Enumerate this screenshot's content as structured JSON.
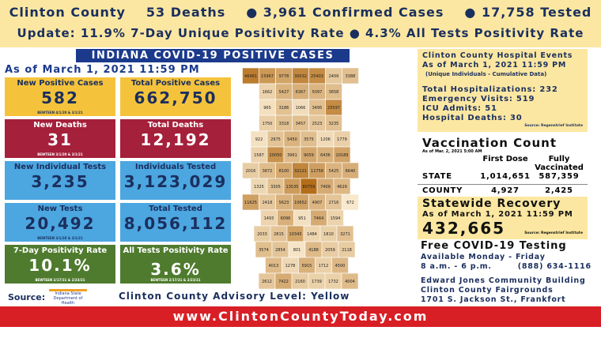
{
  "header": {
    "line1": [
      "Clinton County",
      "53 Deaths",
      "● 3,961 Confirmed Cases",
      "● 17,758 Tested"
    ],
    "line2": "Update: 11.9% 7-Day Unique Positivity Rate ● 4.3% All Tests Positivity Rate"
  },
  "section_title": "INDIANA COVID-19 POSITIVE CASES",
  "as_of": "As of March 1, 2021 11:59 PM",
  "box_rows": [
    {
      "color": "#f5c33b",
      "text_color": "#1b2f5e",
      "boxes": [
        {
          "label": "New Positive Cases",
          "value": "582",
          "note": "BEWTEEN 4/1/20 & 3/1/21"
        },
        {
          "label": "Total Positive Cases",
          "value": "662,750"
        }
      ]
    },
    {
      "color": "#a5203b",
      "text_color": "#ffffff",
      "boxes": [
        {
          "label": "New Deaths",
          "value": "31",
          "note": "BEWTEEN 3/1/20 & 3/1/21"
        },
        {
          "label": "Total Deaths",
          "value": "12,192"
        }
      ]
    },
    {
      "color": "#4ca6e0",
      "text_color": "#1b2f5e",
      "boxes": [
        {
          "label": "New Individual Tests",
          "value": "3,235"
        },
        {
          "label": "Individuals Tested",
          "value": "3,123,029"
        }
      ]
    },
    {
      "color": "#4ca6e0",
      "text_color": "#1b2f5e",
      "boxes": [
        {
          "label": "New Tests",
          "value": "20,492",
          "note": "BEWTEEN 3/1/20 & 3/1/21"
        },
        {
          "label": "Total Tested",
          "value": "8,056,112"
        }
      ]
    },
    {
      "color": "#4f7b2e",
      "text_color": "#ffffff",
      "boxes": [
        {
          "label": "7-Day Positivity Rate",
          "value": "10.1%",
          "note": "BEWTEEN 2/17/21 & 2/23/21"
        },
        {
          "label": "All Tests Positivity Rate",
          "value": "3.6%",
          "note": "BEWTEEN 2/17/21 & 2/23/21"
        }
      ]
    }
  ],
  "source_label": "Source:",
  "source_org": "Indiana State Department of Health",
  "advisory": "Clinton County Advisory Level: Yellow",
  "website": "www.ClintonCountyToday.com",
  "map": {
    "rows": [
      [
        46461,
        15967,
        9778,
        30032,
        25403,
        2409,
        3388
      ],
      [
        1662,
        5427,
        6367,
        5097,
        3658
      ],
      [
        965,
        3186,
        1066,
        3495,
        25597
      ],
      [
        1750,
        3318,
        3457,
        2523,
        3235
      ],
      [
        922,
        2975,
        5450,
        3575,
        1206,
        1779
      ],
      [
        1587,
        20050,
        3961,
        9059,
        6436,
        10189
      ],
      [
        2016,
        3872,
        8100,
        32121,
        11758,
        5425,
        6640
      ],
      [
        1325,
        3305,
        13535,
        80759,
        7409,
        4629
      ],
      [
        11625,
        2418,
        5623,
        10652,
        4907,
        2716,
        672
      ],
      [
        1493,
        6096,
        951,
        7464,
        1594
      ],
      [
        2033,
        2815,
        10343,
        1484,
        1810,
        3271
      ],
      [
        3574,
        2854,
        801,
        4188,
        2059,
        2118
      ],
      [
        4013,
        1278,
        5915,
        1712,
        4500
      ],
      [
        2612,
        7422,
        2160,
        1739,
        1732,
        4004
      ]
    ]
  },
  "hospital": {
    "title": "Clinton County Hospital Events",
    "as_of": "As of March 1, 2021 11:59 PM",
    "subtitle": "(Unique Individuals - Cumulative Data)",
    "lines": [
      "Total Hospitalizations: 232",
      "Emergency Visits: 519",
      "ICU Admits: 51",
      "Hospital Deaths: 30"
    ],
    "source": "Source: Regenstrief Institute"
  },
  "vaccination": {
    "title": "Vaccination Count",
    "as_of": "As of Mar. 2, 2021 5:00 AM",
    "columns": [
      "First Dose",
      "Fully Vaccinated"
    ],
    "rows": [
      [
        "STATE",
        "1,014,651",
        "587,359"
      ],
      [
        "COUNTY",
        "4,927",
        "2,425"
      ]
    ]
  },
  "recovery": {
    "title": "Statewide Recovery",
    "as_of": "As of March 1, 2021 11:59 PM",
    "value": "432,665",
    "source": "Source: Regenstrief Institute"
  },
  "testing": {
    "title": "Free COVID-19 Testing",
    "lines": [
      "Available Monday - Friday",
      "8 a.m. - 6 p.m.        (888) 634-1116"
    ]
  },
  "location": {
    "lines": [
      "Edward Jones Community Building",
      "Clinton County Fairgrounds",
      "1701 S. Jackson St., Frankfort"
    ]
  }
}
